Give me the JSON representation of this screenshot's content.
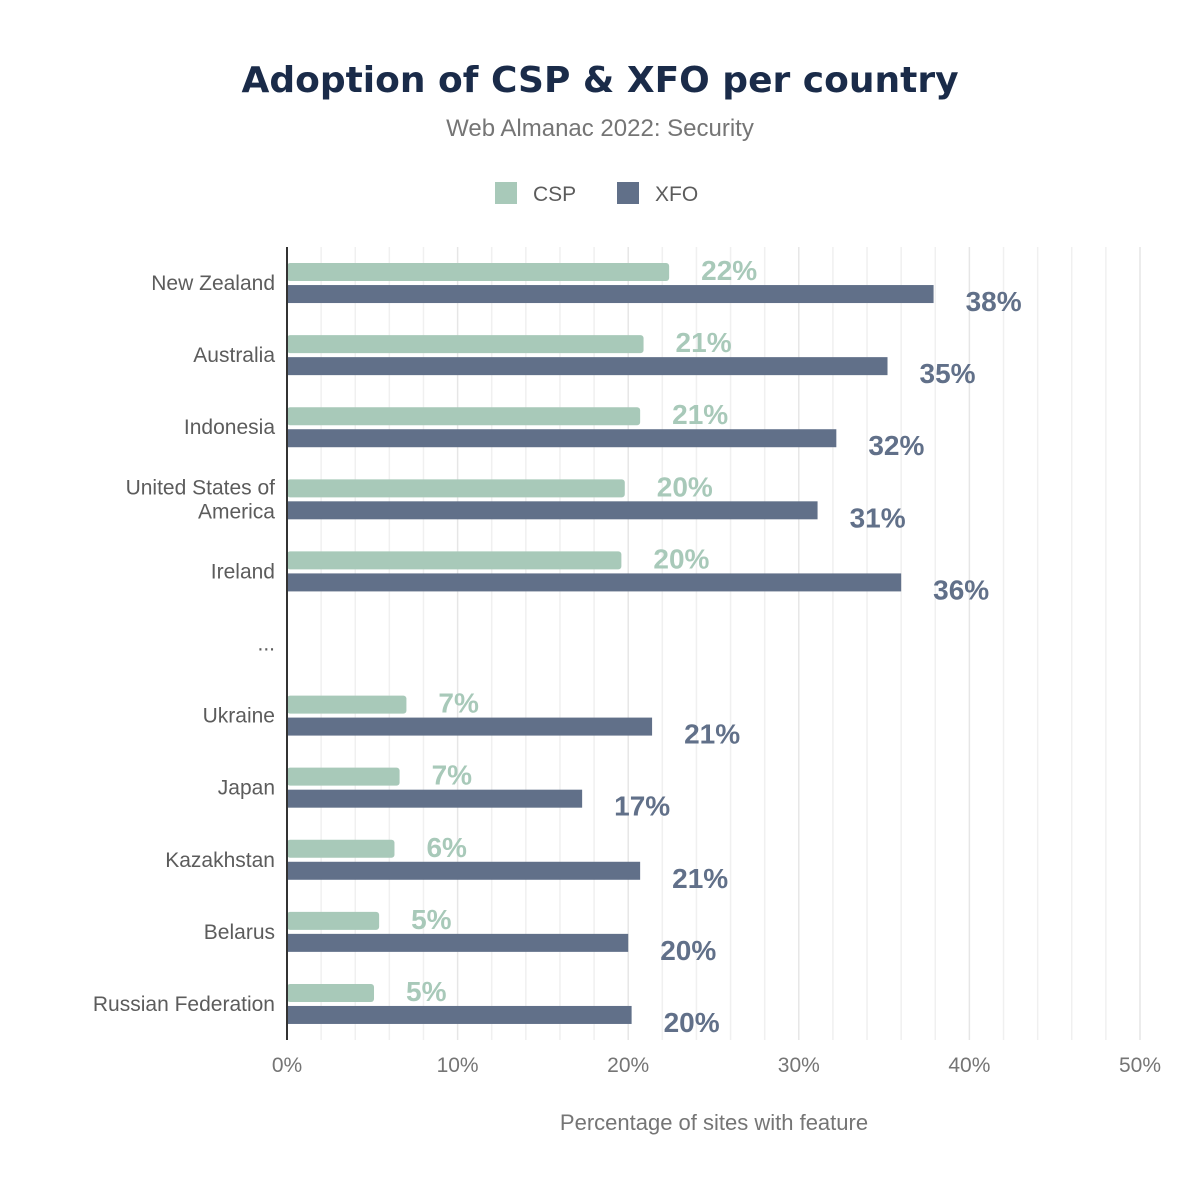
{
  "chart_data": {
    "type": "bar",
    "orientation": "horizontal",
    "title": "Adoption of CSP & XFO per country",
    "subtitle": "Web Almanac 2022: Security",
    "xlabel": "Percentage of sites with feature",
    "ylabel": "",
    "xlim": [
      0,
      50
    ],
    "xticks": [
      "0%",
      "10%",
      "20%",
      "30%",
      "40%",
      "50%"
    ],
    "grid": true,
    "legend_placement": "top-center",
    "categories": [
      "New Zealand",
      "Australia",
      "Indonesia",
      "United States of America",
      "Ireland",
      "...",
      "Ukraine",
      "Japan",
      "Kazakhstan",
      "Belarus",
      "Russian Federation"
    ],
    "series": [
      {
        "name": "CSP",
        "color": "#a8c9b9",
        "values": [
          22.4,
          20.9,
          20.7,
          19.8,
          19.6,
          null,
          7.0,
          6.6,
          6.3,
          5.4,
          5.1
        ],
        "labels": [
          "22%",
          "21%",
          "21%",
          "20%",
          "20%",
          null,
          "7%",
          "7%",
          "6%",
          "5%",
          "5%"
        ]
      },
      {
        "name": "XFO",
        "color": "#617089",
        "values": [
          37.9,
          35.2,
          32.2,
          31.1,
          36.0,
          null,
          21.4,
          17.3,
          20.7,
          20.0,
          20.2
        ],
        "labels": [
          "38%",
          "35%",
          "32%",
          "31%",
          "36%",
          null,
          "21%",
          "17%",
          "21%",
          "20%",
          "20%"
        ]
      }
    ]
  }
}
